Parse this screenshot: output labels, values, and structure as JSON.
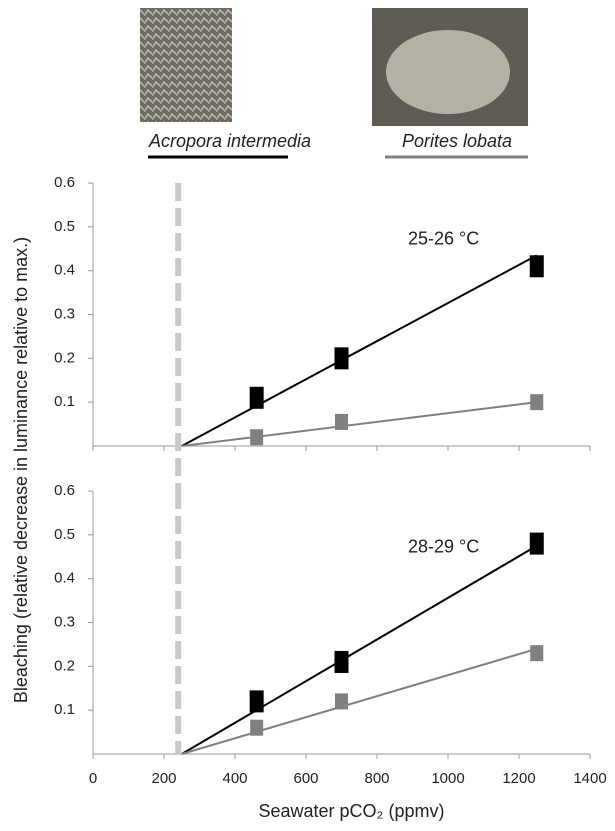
{
  "chart_data": [
    {
      "type": "scatter",
      "ylabel": "Bleaching (relative decrease in luminance relative to max.)",
      "annotation": "25-26 °C",
      "xlim": [
        0,
        1400
      ],
      "xticks": [
        0,
        200,
        400,
        600,
        800,
        1000,
        1200,
        1400
      ],
      "ylim": [
        0,
        0.6
      ],
      "yticks": [
        0.1,
        0.2,
        0.3,
        0.4,
        0.5,
        0.6
      ],
      "reference_x": 240,
      "series": [
        {
          "name": "Acropora intermedia",
          "color": "#000000",
          "x": [
            461,
            700,
            1250
          ],
          "values": [
            0.11,
            0.2,
            0.41
          ],
          "fit": {
            "x": [
              250,
              1250
            ],
            "y": [
              0,
              0.435
            ]
          }
        },
        {
          "name": "Porites lobata",
          "color": "#808080",
          "x": [
            461,
            700,
            1250
          ],
          "values": [
            0.02,
            0.055,
            0.1
          ],
          "fit": {
            "x": [
              250,
              1250
            ],
            "y": [
              0,
              0.1
            ]
          }
        }
      ]
    },
    {
      "type": "scatter",
      "xlabel": "Seawater pCO₂ (ppmv)",
      "annotation": "28-29 °C",
      "xlim": [
        0,
        1400
      ],
      "xticks": [
        0,
        200,
        400,
        600,
        800,
        1000,
        1200,
        1400
      ],
      "ylim": [
        0,
        0.6
      ],
      "yticks": [
        0.1,
        0.2,
        0.3,
        0.4,
        0.5,
        0.6
      ],
      "reference_x": 240,
      "series": [
        {
          "color": "#000000",
          "x": [
            461,
            700,
            1250
          ],
          "values": [
            0.12,
            0.21,
            0.48
          ],
          "fit": {
            "x": [
              250,
              1250
            ],
            "y": [
              0,
              0.475
            ]
          }
        },
        {
          "color": "#808080",
          "x": [
            461,
            700,
            1250
          ],
          "values": [
            0.06,
            0.12,
            0.23
          ],
          "fit": {
            "x": [
              250,
              1250
            ],
            "y": [
              0,
              0.24
            ]
          }
        }
      ]
    }
  ]
}
